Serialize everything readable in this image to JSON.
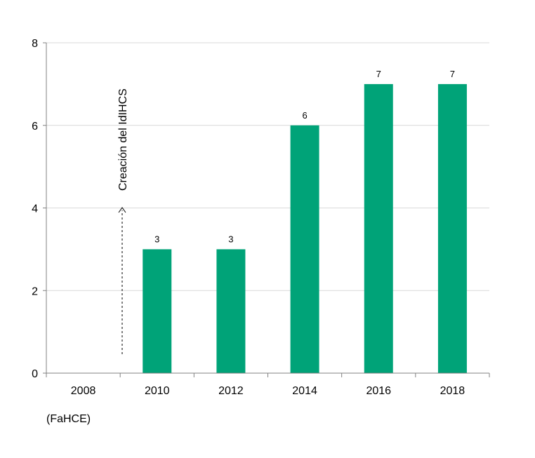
{
  "chart_data": {
    "type": "bar",
    "categories": [
      "2008",
      "2010",
      "2012",
      "2014",
      "2016",
      "2018"
    ],
    "values": [
      null,
      3,
      3,
      6,
      7,
      7
    ],
    "data_labels": [
      "",
      "3",
      "3",
      "6",
      "7",
      "7"
    ],
    "ylim": [
      0,
      8
    ],
    "yticks": [
      "0",
      "2",
      "4",
      "6",
      "8"
    ],
    "grid": true,
    "bar_color": "#00A378",
    "grid_color": "#d9d9d9",
    "axis_color": "#808080",
    "annotation": {
      "text": "Creación del IdIHCS",
      "arrow": "dashed-up",
      "category": "2008"
    },
    "footnote": "(FaHCE)"
  }
}
